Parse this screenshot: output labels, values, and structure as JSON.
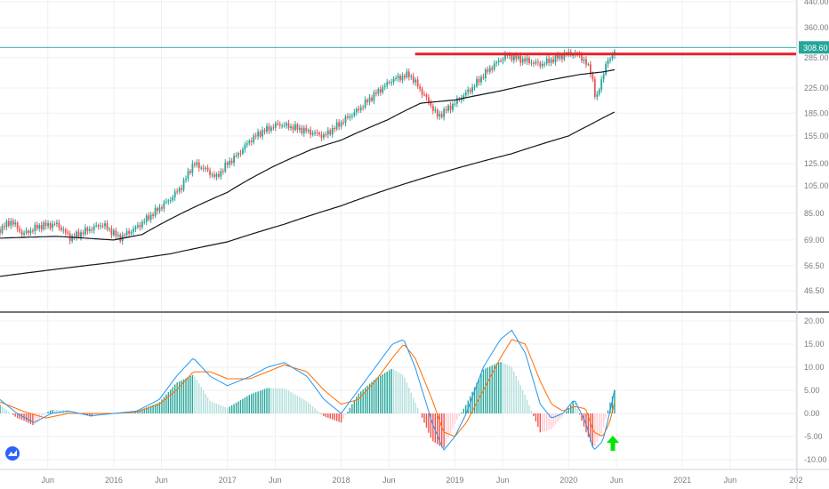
{
  "chart_data": [
    {
      "type": "candlestick",
      "title": "",
      "xlabel": "",
      "ylabel": "",
      "y_scale": "log",
      "ylim": [
        40,
        460
      ],
      "y_ticks": [
        "440.00",
        "360.00",
        "285.00",
        "225.00",
        "185.00",
        "155.00",
        "125.00",
        "105.00",
        "85.00",
        "69.00",
        "56.50",
        "46.50"
      ],
      "y_tick_values": [
        440,
        360,
        285,
        225,
        185,
        155,
        125,
        105,
        85,
        69,
        56.5,
        46.5
      ],
      "x_ticks": [
        "Jun",
        "2016",
        "Jun",
        "2017",
        "Jun",
        "2018",
        "Jun",
        "2019",
        "Jun",
        "2020",
        "Jun",
        "2021",
        "Jun",
        "202"
      ],
      "x_tick_dates": [
        2015.42,
        2016.0,
        2016.42,
        2017.0,
        2017.42,
        2018.0,
        2018.42,
        2019.0,
        2019.42,
        2020.0,
        2020.42,
        2021.0,
        2021.42,
        2022.0
      ],
      "x_range": [
        2015.0,
        2022.0
      ],
      "last_price": "308.60",
      "last_price_value": 308.6,
      "resistance_level": 293,
      "resistance_start": 2018.65,
      "price_keypoints": [
        [
          2015.0,
          75
        ],
        [
          2015.1,
          80
        ],
        [
          2015.2,
          72
        ],
        [
          2015.35,
          77
        ],
        [
          2015.5,
          78
        ],
        [
          2015.62,
          70
        ],
        [
          2015.75,
          74
        ],
        [
          2015.9,
          78
        ],
        [
          2016.05,
          70
        ],
        [
          2016.2,
          76
        ],
        [
          2016.35,
          85
        ],
        [
          2016.5,
          95
        ],
        [
          2016.6,
          105
        ],
        [
          2016.7,
          125
        ],
        [
          2016.8,
          120
        ],
        [
          2016.9,
          112
        ],
        [
          2017.0,
          125
        ],
        [
          2017.1,
          135
        ],
        [
          2017.2,
          150
        ],
        [
          2017.3,
          160
        ],
        [
          2017.45,
          170
        ],
        [
          2017.6,
          165
        ],
        [
          2017.72,
          160
        ],
        [
          2017.85,
          155
        ],
        [
          2018.0,
          172
        ],
        [
          2018.15,
          190
        ],
        [
          2018.3,
          215
        ],
        [
          2018.45,
          240
        ],
        [
          2018.6,
          250
        ],
        [
          2018.72,
          215
        ],
        [
          2018.85,
          180
        ],
        [
          2019.0,
          200
        ],
        [
          2019.15,
          225
        ],
        [
          2019.3,
          260
        ],
        [
          2019.45,
          290
        ],
        [
          2019.6,
          280
        ],
        [
          2019.75,
          270
        ],
        [
          2019.9,
          285
        ],
        [
          2020.0,
          295
        ],
        [
          2020.1,
          290
        ],
        [
          2020.2,
          255
        ],
        [
          2020.24,
          200
        ],
        [
          2020.28,
          235
        ],
        [
          2020.34,
          275
        ],
        [
          2020.4,
          298
        ],
        [
          2020.42,
          312
        ]
      ],
      "sma_short_keypoints": [
        [
          2015.0,
          70
        ],
        [
          2015.5,
          71
        ],
        [
          2016.0,
          69
        ],
        [
          2016.25,
          72
        ],
        [
          2016.6,
          85
        ],
        [
          2017.0,
          100
        ],
        [
          2017.4,
          122
        ],
        [
          2017.75,
          140
        ],
        [
          2018.0,
          150
        ],
        [
          2018.4,
          175
        ],
        [
          2018.7,
          200
        ],
        [
          2019.0,
          205
        ],
        [
          2019.4,
          220
        ],
        [
          2019.8,
          238
        ],
        [
          2020.1,
          250
        ],
        [
          2020.3,
          255
        ],
        [
          2020.42,
          260
        ]
      ],
      "sma_long_keypoints": [
        [
          2015.0,
          52
        ],
        [
          2015.5,
          55
        ],
        [
          2016.0,
          58
        ],
        [
          2016.5,
          62
        ],
        [
          2017.0,
          68
        ],
        [
          2017.5,
          78
        ],
        [
          2018.0,
          90
        ],
        [
          2018.5,
          105
        ],
        [
          2019.0,
          120
        ],
        [
          2019.5,
          135
        ],
        [
          2020.0,
          155
        ],
        [
          2020.2,
          170
        ],
        [
          2020.42,
          188
        ]
      ],
      "indicator": {
        "name": "",
        "ylim": [
          -11,
          21
        ],
        "y_ticks": [
          "20.00",
          "15.00",
          "10.00",
          "5.00",
          "0.00",
          "-5.00",
          "-10.00"
        ],
        "y_tick_values": [
          20,
          15,
          10,
          5,
          0,
          -5,
          -10
        ],
        "macd_keypoints": [
          [
            2015.0,
            3
          ],
          [
            2015.15,
            0
          ],
          [
            2015.3,
            -2
          ],
          [
            2015.45,
            0
          ],
          [
            2015.6,
            0.5
          ],
          [
            2015.8,
            -0.5
          ],
          [
            2016.0,
            0
          ],
          [
            2016.2,
            0.5
          ],
          [
            2016.4,
            3
          ],
          [
            2016.55,
            8
          ],
          [
            2016.7,
            12
          ],
          [
            2016.85,
            8
          ],
          [
            2017.0,
            6
          ],
          [
            2017.2,
            8
          ],
          [
            2017.35,
            10
          ],
          [
            2017.5,
            11
          ],
          [
            2017.7,
            8
          ],
          [
            2017.85,
            3
          ],
          [
            2018.0,
            0
          ],
          [
            2018.15,
            5
          ],
          [
            2018.3,
            10
          ],
          [
            2018.45,
            15
          ],
          [
            2018.55,
            16
          ],
          [
            2018.65,
            10
          ],
          [
            2018.8,
            -2
          ],
          [
            2018.9,
            -8
          ],
          [
            2019.0,
            -5
          ],
          [
            2019.1,
            0
          ],
          [
            2019.25,
            10
          ],
          [
            2019.4,
            16
          ],
          [
            2019.5,
            18
          ],
          [
            2019.62,
            13
          ],
          [
            2019.75,
            2
          ],
          [
            2019.85,
            -1
          ],
          [
            2019.95,
            0
          ],
          [
            2020.05,
            3
          ],
          [
            2020.15,
            -2
          ],
          [
            2020.22,
            -8
          ],
          [
            2020.3,
            -6
          ],
          [
            2020.36,
            0
          ],
          [
            2020.42,
            7
          ]
        ],
        "signal_keypoints": [
          [
            2015.0,
            2.5
          ],
          [
            2015.2,
            0.5
          ],
          [
            2015.4,
            -1
          ],
          [
            2015.6,
            0
          ],
          [
            2015.8,
            0
          ],
          [
            2016.0,
            0
          ],
          [
            2016.2,
            0.3
          ],
          [
            2016.4,
            2
          ],
          [
            2016.55,
            5
          ],
          [
            2016.7,
            9
          ],
          [
            2016.85,
            9
          ],
          [
            2017.0,
            7.5
          ],
          [
            2017.2,
            7.5
          ],
          [
            2017.35,
            9
          ],
          [
            2017.5,
            10.5
          ],
          [
            2017.7,
            9
          ],
          [
            2017.85,
            5
          ],
          [
            2018.0,
            2
          ],
          [
            2018.15,
            3
          ],
          [
            2018.3,
            7
          ],
          [
            2018.45,
            12
          ],
          [
            2018.55,
            15
          ],
          [
            2018.65,
            12
          ],
          [
            2018.8,
            3
          ],
          [
            2018.9,
            -4
          ],
          [
            2019.0,
            -5
          ],
          [
            2019.1,
            -2
          ],
          [
            2019.25,
            5
          ],
          [
            2019.4,
            12
          ],
          [
            2019.5,
            16
          ],
          [
            2019.62,
            15
          ],
          [
            2019.75,
            7
          ],
          [
            2019.85,
            2
          ],
          [
            2019.95,
            0.5
          ],
          [
            2020.05,
            1.5
          ],
          [
            2020.15,
            1
          ],
          [
            2020.22,
            -4
          ],
          [
            2020.3,
            -5
          ],
          [
            2020.36,
            -2
          ],
          [
            2020.42,
            4
          ]
        ]
      }
    }
  ],
  "colors": {
    "up": "#26a69a",
    "down": "#ef5350",
    "sma_short": "#131722",
    "sma_long": "#131722",
    "resistance": "#e52128",
    "last_price_line": "#26a69a",
    "macd": "#2196f3",
    "signal": "#ff6d00",
    "hist_up_strong": "#26a69a",
    "hist_up_weak": "#b2dfdb",
    "hist_down_strong": "#ef5350",
    "hist_down_weak": "#ffcdd2",
    "arrow": "#00e600",
    "grid": "#eef0f3",
    "axis_text": "#787b86",
    "separator": "#434651"
  },
  "annotation": {
    "arrow_icon": "green-up-arrow-icon"
  },
  "logo": {
    "icon": "tradingview-logo-icon"
  }
}
